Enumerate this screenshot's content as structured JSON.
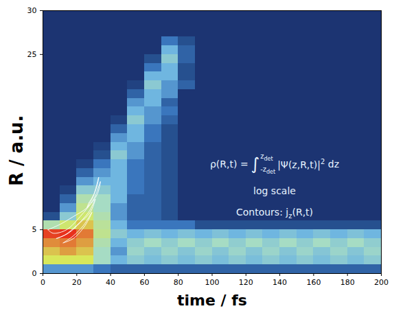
{
  "chart_data": {
    "type": "heatmap",
    "x_label": "time / fs",
    "y_label": "R / a.u.",
    "xlim": [
      0,
      200
    ],
    "ylim": [
      0,
      30
    ],
    "xticks": [
      0,
      20,
      40,
      60,
      80,
      100,
      120,
      140,
      160,
      180,
      200
    ],
    "yticks": [
      0,
      5,
      25,
      30
    ],
    "cells": {
      "t_edges": [
        0,
        10,
        20,
        30,
        40,
        50,
        60,
        70,
        80,
        90,
        100,
        110,
        120,
        130,
        140,
        150,
        160,
        170,
        180,
        190,
        200
      ],
      "R_edges": [
        0,
        1,
        2,
        3,
        4,
        5,
        6,
        7,
        8,
        9,
        10,
        11,
        12,
        13,
        14,
        15,
        16,
        17,
        18,
        19,
        20,
        21,
        22,
        23,
        24,
        25,
        26,
        27,
        28,
        29,
        30
      ],
      "values": [
        [
          -3.5,
          -3.5,
          -3.5,
          -4,
          -4.5,
          -4.5,
          -4.5,
          -4.5,
          -4.5,
          -4.5,
          -4.5,
          -4.5,
          -4.5,
          -4.5,
          -4.5,
          -4.5,
          -4.5,
          -4.5,
          -4.5,
          -4.5
        ],
        [
          -1,
          -1,
          -1,
          -2,
          -3,
          -2.5,
          -2.8,
          -2.5,
          -2.8,
          -2.5,
          -2.8,
          -2.5,
          -2.8,
          -2.5,
          -2.8,
          -2.5,
          -2.8,
          -2.5,
          -2.8,
          -2.5
        ],
        [
          -0.8,
          -0.6,
          -0.8,
          -2,
          -3.5,
          -2.2,
          -2.6,
          -2.2,
          -2.6,
          -2.2,
          -2.6,
          -2.2,
          -2.6,
          -2.2,
          -2.6,
          -2.2,
          -2.6,
          -2.2,
          -2.6,
          -2.2
        ],
        [
          -0.5,
          -0.4,
          -0.6,
          -1.8,
          -3,
          -2.4,
          -2,
          -2.4,
          -2,
          -2.4,
          -2,
          -2.4,
          -2,
          -2.4,
          -2,
          -2.4,
          -2,
          -2.4,
          -2,
          -2.4
        ],
        [
          -0.1,
          0,
          -0.4,
          -1.5,
          -2.5,
          -3,
          -2.7,
          -3,
          -2.7,
          -3,
          -2.7,
          -3,
          -2.7,
          -3,
          -2.7,
          -3,
          -2.7,
          -3,
          -2.7,
          -3
        ],
        [
          -1.8,
          -1.2,
          -0.8,
          -1.6,
          -3,
          -4,
          -4,
          -4,
          -4,
          -5,
          -5,
          -5,
          -5,
          -5,
          -5,
          -5,
          -5,
          -5,
          -5,
          -5
        ],
        [
          -5,
          -2.5,
          -1.2,
          -1.8,
          -3.5,
          -4.5,
          -4.5,
          -5,
          -6,
          -6,
          -6,
          -6,
          -6,
          -6,
          -6,
          -6,
          -6,
          -6,
          -6,
          -6
        ],
        [
          -6,
          -3.5,
          -1.5,
          -2,
          -3.5,
          -4.5,
          -4.5,
          -5,
          -6,
          -6,
          -6,
          -6,
          -6,
          -6,
          -6,
          -6,
          -6,
          -6,
          -6,
          -6
        ],
        [
          -6,
          -4.5,
          -1.8,
          -2,
          -3,
          -4.5,
          -4.5,
          -5,
          -6,
          -6,
          -6,
          -6,
          -6,
          -6,
          -6,
          -6,
          -6,
          -6,
          -6,
          -6
        ],
        [
          -6,
          -5.5,
          -2.5,
          -2.5,
          -3,
          -4,
          -4.5,
          -5,
          -6,
          -6,
          -6,
          -6,
          -6,
          -6,
          -6,
          -6,
          -6,
          -6,
          -6,
          -6
        ],
        [
          -6,
          -6,
          -3.5,
          -3,
          -3,
          -4,
          -4.5,
          -5,
          -6,
          -6,
          -6,
          -6,
          -6,
          -6,
          -6,
          -6,
          -6,
          -6,
          -6,
          -6
        ],
        [
          -6,
          -6,
          -4.5,
          -3.5,
          -3,
          -4,
          -4.5,
          -5,
          -6,
          -6,
          -6,
          -6,
          -6,
          -6,
          -6,
          -6,
          -6,
          -6,
          -6,
          -6
        ],
        [
          -6,
          -6,
          -5.5,
          -4,
          -3,
          -4,
          -4.5,
          -5,
          -6,
          -6,
          -6,
          -6,
          -6,
          -6,
          -6,
          -6,
          -6,
          -6,
          -6,
          -6
        ],
        [
          -6,
          -6,
          -6,
          -5,
          -2.5,
          -3.5,
          -4.5,
          -5,
          -6,
          -6,
          -6,
          -6,
          -6,
          -6,
          -6,
          -6,
          -6,
          -6,
          -6,
          -6
        ],
        [
          -6,
          -6,
          -6,
          -5.5,
          -3,
          -3.5,
          -4.5,
          -5,
          -6,
          -6,
          -6,
          -6,
          -6,
          -6,
          -6,
          -6,
          -6,
          -6,
          -6,
          -6
        ],
        [
          -6,
          -6,
          -6,
          -6,
          -3.5,
          -3,
          -4,
          -5,
          -6,
          -6,
          -6,
          -6,
          -6,
          -6,
          -6,
          -6,
          -6,
          -6,
          -6,
          -6
        ],
        [
          -6,
          -6,
          -6,
          -6,
          -4.5,
          -3,
          -4,
          -5,
          -6,
          -6,
          -6,
          -6,
          -6,
          -6,
          -6,
          -6,
          -6,
          -6,
          -6,
          -6
        ],
        [
          -6,
          -6,
          -6,
          -6,
          -5.5,
          -2.5,
          -3.5,
          -4.5,
          -6,
          -6,
          -6,
          -6,
          -6,
          -6,
          -6,
          -6,
          -6,
          -6,
          -6,
          -6
        ],
        [
          -6,
          -6,
          -6,
          -6,
          -6,
          -3,
          -3.5,
          -4,
          -6,
          -6,
          -6,
          -6,
          -6,
          -6,
          -6,
          -6,
          -6,
          -6,
          -6,
          -6
        ],
        [
          -6,
          -6,
          -6,
          -6,
          -6,
          -3.5,
          -3,
          -4.5,
          -6,
          -6,
          -6,
          -6,
          -6,
          -6,
          -6,
          -6,
          -6,
          -6,
          -6,
          -6
        ],
        [
          -6,
          -6,
          -6,
          -6,
          -6,
          -4.5,
          -3,
          -3.5,
          -6,
          -6,
          -6,
          -6,
          -6,
          -6,
          -6,
          -6,
          -6,
          -6,
          -6,
          -6
        ],
        [
          -6,
          -6,
          -6,
          -6,
          -6,
          -5.5,
          -2.5,
          -3.5,
          -4.5,
          -6,
          -6,
          -6,
          -6,
          -6,
          -6,
          -6,
          -6,
          -6,
          -6,
          -6
        ],
        [
          -6,
          -6,
          -6,
          -6,
          -6,
          -6,
          -3,
          -3,
          -5,
          -6,
          -6,
          -6,
          -6,
          -6,
          -6,
          -6,
          -6,
          -6,
          -6,
          -6
        ],
        [
          -6,
          -6,
          -6,
          -6,
          -6,
          -6,
          -4,
          -3,
          -5,
          -6,
          -6,
          -6,
          -6,
          -6,
          -6,
          -6,
          -6,
          -6,
          -6,
          -6
        ],
        [
          -6,
          -6,
          -6,
          -6,
          -6,
          -6,
          -5,
          -2.5,
          -4.5,
          -6,
          -6,
          -6,
          -6,
          -6,
          -6,
          -6,
          -6,
          -6,
          -6,
          -6
        ],
        [
          -6,
          -6,
          -6,
          -6,
          -6,
          -6,
          -6,
          -3,
          -4.5,
          -6,
          -6,
          -6,
          -6,
          -6,
          -6,
          -6,
          -6,
          -6,
          -6,
          -6
        ],
        [
          -6,
          -6,
          -6,
          -6,
          -6,
          -6,
          -6,
          -4,
          -5,
          -6,
          -6,
          -6,
          -6,
          -6,
          -6,
          -6,
          -6,
          -6,
          -6,
          -6
        ],
        [
          -6,
          -6,
          -6,
          -6,
          -6,
          -6,
          -6,
          -6,
          -6,
          -6,
          -6,
          -6,
          -6,
          -6,
          -6,
          -6,
          -6,
          -6,
          -6,
          -6
        ],
        [
          -6,
          -6,
          -6,
          -6,
          -6,
          -6,
          -6,
          -6,
          -6,
          -6,
          -6,
          -6,
          -6,
          -6,
          -6,
          -6,
          -6,
          -6,
          -6,
          -6
        ],
        [
          -6,
          -6,
          -6,
          -6,
          -6,
          -6,
          -6,
          -6,
          -6,
          -6,
          -6,
          -6,
          -6,
          -6,
          -6,
          -6,
          -6,
          -6,
          -6,
          -6
        ]
      ]
    },
    "contours": [
      {
        "t": [
          3,
          10,
          18,
          26,
          32,
          34,
          30,
          22,
          14,
          6,
          3
        ],
        "R": [
          5,
          5.6,
          6.5,
          7.5,
          9,
          10.5,
          8.5,
          6.5,
          5,
          4.6,
          5
        ]
      },
      {
        "t": [
          8,
          15,
          22,
          28,
          31,
          27,
          20,
          13,
          8
        ],
        "R": [
          4,
          4.6,
          5.8,
          7,
          8.5,
          7,
          5.5,
          4.4,
          4
        ]
      },
      {
        "t": [
          12,
          18,
          24,
          29,
          25,
          18,
          12
        ],
        "R": [
          3.5,
          4.3,
          5.5,
          7,
          5.5,
          4,
          3.5
        ]
      },
      {
        "t": [
          26,
          29,
          32,
          33,
          30,
          27,
          26
        ],
        "R": [
          7.5,
          8.5,
          10,
          11,
          9,
          8,
          7.5
        ]
      }
    ],
    "annotations": {
      "formula": {
        "lhs": "ρ(R,t) =",
        "integral": "∫",
        "upper": [
          "z",
          "det"
        ],
        "lower": [
          "-z",
          "det"
        ],
        "integrand": "|Ψ(z,R,t)|",
        "power": "2",
        "tail": "dz"
      },
      "scale_note": "log scale",
      "contour_note": {
        "text": "Contours: j",
        "sub": "z",
        "tail": "(R,t)"
      }
    }
  }
}
